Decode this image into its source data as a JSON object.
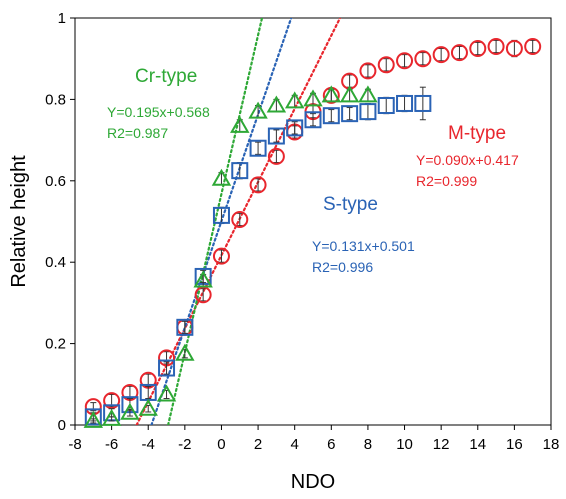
{
  "chart_data": {
    "type": "scatter",
    "xlabel": "NDO",
    "ylabel": "Relative height",
    "xlim": [
      -8,
      18
    ],
    "ylim": [
      0,
      1
    ],
    "xticks": [
      "-8",
      "-6",
      "-4",
      "-2",
      "0",
      "2",
      "4",
      "6",
      "8",
      "10",
      "12",
      "14",
      "16",
      "18"
    ],
    "yticks": [
      "0",
      "0.2",
      "0.4",
      "0.6",
      "0.8",
      "1"
    ],
    "grid": false,
    "series": [
      {
        "name": "M-type",
        "marker": "circle",
        "color": "#e8262d",
        "x": [
          -7,
          -6,
          -5,
          -4,
          -3,
          -2,
          -1,
          0,
          1,
          2,
          3,
          4,
          5,
          6,
          7,
          8,
          9,
          10,
          11,
          12,
          13,
          14,
          15,
          16,
          17
        ],
        "y": [
          0.045,
          0.06,
          0.08,
          0.11,
          0.165,
          0.24,
          0.32,
          0.415,
          0.505,
          0.59,
          0.66,
          0.72,
          0.77,
          0.81,
          0.845,
          0.87,
          0.885,
          0.895,
          0.9,
          0.91,
          0.915,
          0.925,
          0.93,
          0.925,
          0.93
        ],
        "err": [
          0.01,
          0.015,
          0.015,
          0.015,
          0.015,
          0.015,
          0.015,
          0.015,
          0.015,
          0.015,
          0.015,
          0.015,
          0.015,
          0.015,
          0.015,
          0.015,
          0.015,
          0.015,
          0.015,
          0.015,
          0.015,
          0.015,
          0.015,
          0.02,
          0.015
        ],
        "equation": "Y=0.090x+0.417",
        "r2": "R2=0.999",
        "fit": {
          "slope": 0.09,
          "intercept": 0.417
        }
      },
      {
        "name": "S-type",
        "marker": "square",
        "color": "#2a63b5",
        "x": [
          -7,
          -6,
          -5,
          -4,
          -3,
          -2,
          -1,
          0,
          1,
          2,
          3,
          4,
          5,
          6,
          7,
          8,
          9,
          10,
          11
        ],
        "y": [
          0.02,
          0.03,
          0.05,
          0.08,
          0.14,
          0.24,
          0.365,
          0.515,
          0.625,
          0.68,
          0.71,
          0.73,
          0.75,
          0.76,
          0.765,
          0.77,
          0.785,
          0.79,
          0.79
        ],
        "err": [
          0.01,
          0.01,
          0.015,
          0.015,
          0.015,
          0.015,
          0.015,
          0.02,
          0.02,
          0.015,
          0.015,
          0.015,
          0.015,
          0.015,
          0.015,
          0.02,
          0.02,
          0.02,
          0.04
        ],
        "equation": "Y=0.131x+0.501",
        "r2": "R2=0.996",
        "fit": {
          "slope": 0.131,
          "intercept": 0.501
        }
      },
      {
        "name": "Cr-type",
        "marker": "triangle",
        "color": "#2ea836",
        "x": [
          -7,
          -6,
          -5,
          -4,
          -3,
          -2,
          -1,
          0,
          1,
          2,
          3,
          4,
          5,
          6,
          7,
          8
        ],
        "y": [
          0.01,
          0.015,
          0.03,
          0.04,
          0.075,
          0.175,
          0.355,
          0.605,
          0.735,
          0.77,
          0.785,
          0.795,
          0.8,
          0.81,
          0.81,
          0.81
        ],
        "err": [
          0.005,
          0.005,
          0.008,
          0.008,
          0.01,
          0.01,
          0.015,
          0.015,
          0.015,
          0.015,
          0.015,
          0.015,
          0.015,
          0.015,
          0.015,
          0.015
        ],
        "equation": "Y=0.195x+0.568",
        "r2": "R2=0.987",
        "fit": {
          "slope": 0.195,
          "intercept": 0.568
        }
      }
    ]
  }
}
